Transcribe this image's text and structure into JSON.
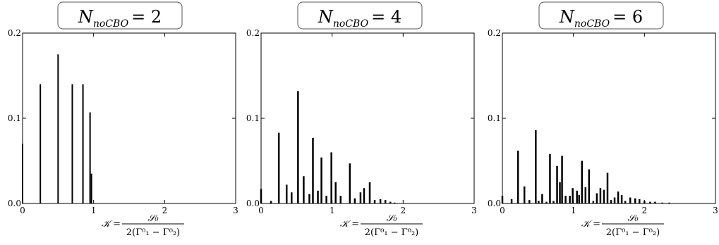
{
  "chart_data": [
    {
      "type": "bar",
      "title": {
        "main": "N",
        "sub": "noCBO",
        "rhs": "= 2"
      },
      "xlabel": {
        "lhs": "𝒦 =",
        "num": "𝒮₀",
        "den": "2(Γ⁰₁ − Γ⁰₂)"
      },
      "xlim": [
        0,
        3
      ],
      "ylim": [
        0,
        0.2
      ],
      "xticks": [
        "0",
        "1",
        "2",
        "3"
      ],
      "yticks": [
        "0.0",
        "0.1",
        "0.2"
      ],
      "points": [
        {
          "x": 0.0,
          "y": 0.07
        },
        {
          "x": 0.25,
          "y": 0.14
        },
        {
          "x": 0.5,
          "y": 0.175
        },
        {
          "x": 0.7,
          "y": 0.14
        },
        {
          "x": 0.85,
          "y": 0.14
        },
        {
          "x": 0.95,
          "y": 0.107
        },
        {
          "x": 0.97,
          "y": 0.035
        }
      ]
    },
    {
      "type": "bar",
      "title": {
        "main": "N",
        "sub": "noCBO",
        "rhs": "= 4"
      },
      "xlabel": {
        "lhs": "𝒦 =",
        "num": "𝒮₀",
        "den": "2(Γ⁰₁ − Γ⁰₂)"
      },
      "xlim": [
        0,
        3
      ],
      "ylim": [
        0,
        0.2
      ],
      "xticks": [
        "0",
        "1",
        "2",
        "3"
      ],
      "yticks": [
        "0.0",
        "0.1",
        "0.2"
      ],
      "points": [
        {
          "x": 0.0,
          "y": 0.017
        },
        {
          "x": 0.14,
          "y": 0.003
        },
        {
          "x": 0.25,
          "y": 0.083
        },
        {
          "x": 0.36,
          "y": 0.022
        },
        {
          "x": 0.43,
          "y": 0.013
        },
        {
          "x": 0.52,
          "y": 0.132
        },
        {
          "x": 0.6,
          "y": 0.032
        },
        {
          "x": 0.68,
          "y": 0.011
        },
        {
          "x": 0.73,
          "y": 0.077
        },
        {
          "x": 0.8,
          "y": 0.015
        },
        {
          "x": 0.85,
          "y": 0.054
        },
        {
          "x": 0.92,
          "y": 0.009
        },
        {
          "x": 0.99,
          "y": 0.06
        },
        {
          "x": 1.05,
          "y": 0.025
        },
        {
          "x": 1.12,
          "y": 0.009
        },
        {
          "x": 1.25,
          "y": 0.047
        },
        {
          "x": 1.32,
          "y": 0.006
        },
        {
          "x": 1.4,
          "y": 0.013
        },
        {
          "x": 1.45,
          "y": 0.018
        },
        {
          "x": 1.53,
          "y": 0.025
        },
        {
          "x": 1.6,
          "y": 0.004
        },
        {
          "x": 1.68,
          "y": 0.005
        },
        {
          "x": 1.75,
          "y": 0.004
        },
        {
          "x": 1.82,
          "y": 0.002
        },
        {
          "x": 1.88,
          "y": 0.001
        }
      ]
    },
    {
      "type": "bar",
      "title": {
        "main": "N",
        "sub": "noCBO",
        "rhs": "= 6"
      },
      "xlabel": {
        "lhs": "𝒦 =",
        "num": "𝒮₀",
        "den": "2(Γ⁰₁ − Γ⁰₂)"
      },
      "xlim": [
        0,
        3
      ],
      "ylim": [
        0,
        0.2
      ],
      "xticks": [
        "0",
        "1",
        "2",
        "3"
      ],
      "yticks": [
        "0.0",
        "0.1",
        "0.2"
      ],
      "points": [
        {
          "x": 0.0,
          "y": 0.009
        },
        {
          "x": 0.13,
          "y": 0.005
        },
        {
          "x": 0.22,
          "y": 0.062
        },
        {
          "x": 0.31,
          "y": 0.02
        },
        {
          "x": 0.38,
          "y": 0.004
        },
        {
          "x": 0.47,
          "y": 0.086
        },
        {
          "x": 0.51,
          "y": 0.003
        },
        {
          "x": 0.56,
          "y": 0.011
        },
        {
          "x": 0.62,
          "y": 0.002
        },
        {
          "x": 0.67,
          "y": 0.058
        },
        {
          "x": 0.72,
          "y": 0.003
        },
        {
          "x": 0.77,
          "y": 0.044
        },
        {
          "x": 0.81,
          "y": 0.025
        },
        {
          "x": 0.84,
          "y": 0.056
        },
        {
          "x": 0.89,
          "y": 0.009
        },
        {
          "x": 0.95,
          "y": 0.009
        },
        {
          "x": 0.99,
          "y": 0.018
        },
        {
          "x": 1.05,
          "y": 0.015
        },
        {
          "x": 1.08,
          "y": 0.01
        },
        {
          "x": 1.12,
          "y": 0.05
        },
        {
          "x": 1.17,
          "y": 0.019
        },
        {
          "x": 1.22,
          "y": 0.04
        },
        {
          "x": 1.28,
          "y": 0.003
        },
        {
          "x": 1.33,
          "y": 0.012
        },
        {
          "x": 1.38,
          "y": 0.018
        },
        {
          "x": 1.43,
          "y": 0.016
        },
        {
          "x": 1.48,
          "y": 0.036
        },
        {
          "x": 1.53,
          "y": 0.004
        },
        {
          "x": 1.58,
          "y": 0.007
        },
        {
          "x": 1.63,
          "y": 0.014
        },
        {
          "x": 1.68,
          "y": 0.01
        },
        {
          "x": 1.73,
          "y": 0.003
        },
        {
          "x": 1.8,
          "y": 0.007
        },
        {
          "x": 1.87,
          "y": 0.006
        },
        {
          "x": 1.93,
          "y": 0.005
        },
        {
          "x": 2.0,
          "y": 0.003
        },
        {
          "x": 2.08,
          "y": 0.002
        },
        {
          "x": 2.15,
          "y": 0.002
        },
        {
          "x": 2.25,
          "y": 0.001
        },
        {
          "x": 2.35,
          "y": 0.001
        }
      ]
    }
  ]
}
